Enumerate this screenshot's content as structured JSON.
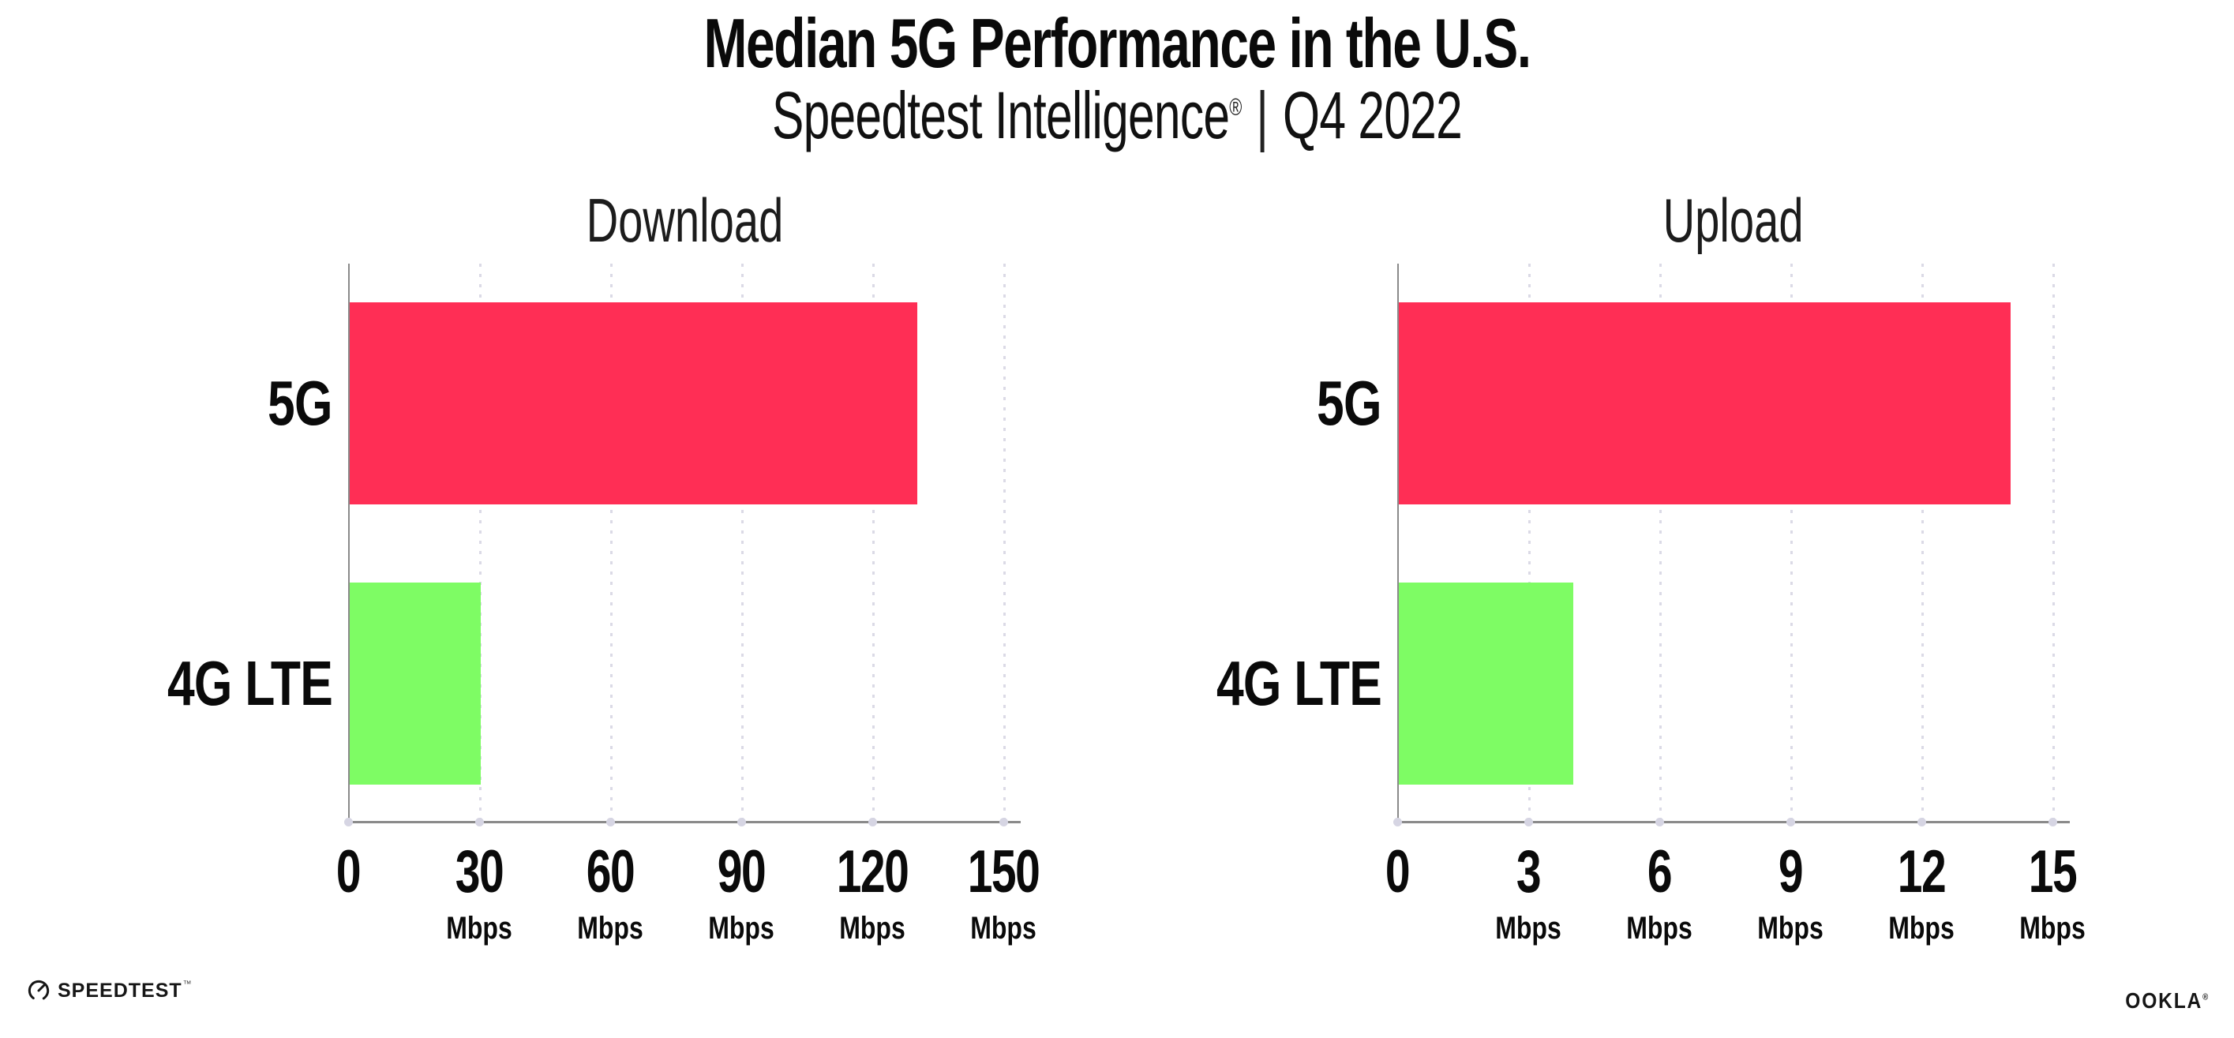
{
  "header": {
    "title": "Median 5G Performance in the U.S.",
    "subtitle": {
      "brand": "Speedtest Intelligence",
      "registered_mark": "®",
      "separator": "|",
      "period": "Q4 2022"
    }
  },
  "chart_data": [
    {
      "type": "bar",
      "orientation": "horizontal",
      "title": "Download",
      "categories": [
        "5G",
        "4G LTE"
      ],
      "values": [
        130,
        30
      ],
      "unit": "Mbps",
      "xlabel": "",
      "ylabel": "",
      "xlim": [
        0,
        150
      ],
      "xticks": [
        0,
        30,
        60,
        90,
        120,
        150
      ],
      "bar_colors": [
        "#FF2E55",
        "#7EFC64"
      ],
      "grid": "dotted vertical gridlines at each tick",
      "legend": "none"
    },
    {
      "type": "bar",
      "orientation": "horizontal",
      "title": "Upload",
      "categories": [
        "5G",
        "4G LTE"
      ],
      "values": [
        14,
        4
      ],
      "unit": "Mbps",
      "xlabel": "",
      "ylabel": "",
      "xlim": [
        0,
        15
      ],
      "xticks": [
        0,
        3,
        6,
        9,
        12,
        15
      ],
      "bar_colors": [
        "#FF2E55",
        "#7EFC64"
      ],
      "grid": "dotted vertical gridlines at each tick",
      "legend": "none"
    }
  ],
  "footer": {
    "speedtest": {
      "icon": "gauge-icon",
      "wordmark": "SPEEDTEST",
      "trademark": "™"
    },
    "ookla": {
      "wordmark": "OOKLA",
      "registered_mark": "®"
    }
  },
  "style": {
    "bar_red": "#FF2E55",
    "bar_green": "#7EFC64",
    "axis_gray": "#8A8A8A",
    "gridline_dot_color": "#DBDAE6",
    "text_color": "#0A0A0A",
    "background": "#FFFFFF"
  }
}
